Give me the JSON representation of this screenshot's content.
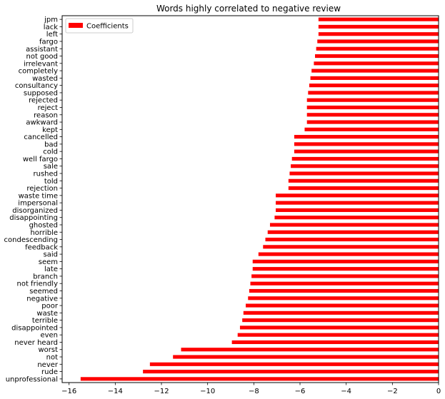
{
  "chart_data": {
    "type": "bar",
    "orientation": "horizontal",
    "title": "Words highly correlated to negative review",
    "xlabel": "",
    "ylabel": "",
    "xlim": [
      -16.3,
      0
    ],
    "xticks": [
      -16,
      -14,
      -12,
      -10,
      -8,
      -6,
      -4,
      -2,
      0
    ],
    "xtick_labels": [
      "−16",
      "−14",
      "−12",
      "−10",
      "−8",
      "−6",
      "−4",
      "−2",
      "0"
    ],
    "grid": false,
    "legend_position": "top-left",
    "bar_color": "#ff0000",
    "categories": [
      "jpm",
      "lack",
      "left",
      "fargo",
      "assistant",
      "not good",
      "irrelevant",
      "completely",
      "wasted",
      "consultancy",
      "supposed",
      "rejected",
      "reject",
      "reason",
      "awkward",
      "kept",
      "cancelled",
      "bad",
      "cold",
      "well fargo",
      "sale",
      "rushed",
      "told",
      "rejection",
      "waste time",
      "impersonal",
      "disorganized",
      "disappointing",
      "ghosted",
      "horrible",
      "condescending",
      "feedback",
      "said",
      "seem",
      "late",
      "branch",
      "not friendly",
      "seemed",
      "negative",
      "poor",
      "waste",
      "terrible",
      "disappointed",
      "even",
      "never heard",
      "worst",
      "not",
      "never",
      "rude",
      "unprofessional"
    ],
    "series": [
      {
        "name": "Coefficients",
        "values": [
          -5.2,
          -5.2,
          -5.2,
          -5.25,
          -5.3,
          -5.35,
          -5.4,
          -5.5,
          -5.55,
          -5.6,
          -5.65,
          -5.7,
          -5.7,
          -5.7,
          -5.7,
          -5.8,
          -6.25,
          -6.25,
          -6.25,
          -6.35,
          -6.4,
          -6.45,
          -6.5,
          -6.5,
          -7.05,
          -7.05,
          -7.05,
          -7.1,
          -7.3,
          -7.4,
          -7.5,
          -7.6,
          -7.8,
          -8.05,
          -8.05,
          -8.1,
          -8.15,
          -8.2,
          -8.25,
          -8.35,
          -8.45,
          -8.5,
          -8.6,
          -8.7,
          -8.95,
          -11.15,
          -11.5,
          -12.5,
          -12.8,
          -15.5
        ]
      }
    ]
  }
}
